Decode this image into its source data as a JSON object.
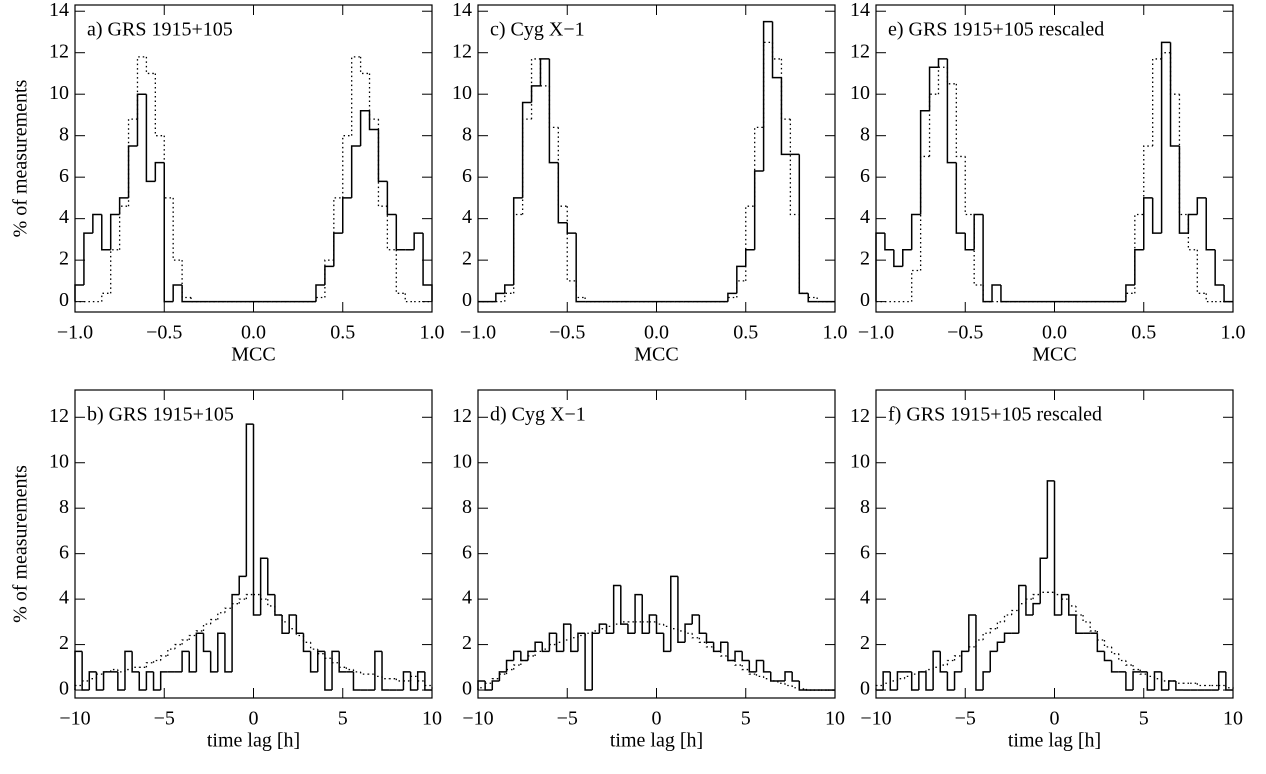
{
  "chart_data": [
    {
      "type": "histogram",
      "panel_label": "a) GRS 1915+105",
      "x_label": "MCC",
      "y_label": "% of measurements",
      "xlim": [
        -1,
        1
      ],
      "ylim": [
        -0.5,
        14.3
      ],
      "xticks": [
        {
          "value": -1,
          "label": "−1.0"
        },
        {
          "value": -0.5,
          "label": "−0.5"
        },
        {
          "value": 0,
          "label": "0.0"
        },
        {
          "value": 0.5,
          "label": "0.5"
        },
        {
          "value": 1,
          "label": "1.0"
        }
      ],
      "yticks": [
        0,
        2,
        4,
        6,
        8,
        10,
        12,
        14
      ],
      "bins": [
        -1,
        -0.95,
        -0.9,
        -0.85,
        -0.8,
        -0.75,
        -0.7,
        -0.65,
        -0.6,
        -0.55,
        -0.5,
        -0.45,
        -0.4,
        -0.35,
        -0.3,
        -0.25,
        -0.2,
        -0.15,
        -0.1,
        -0.05,
        0,
        0.05,
        0.1,
        0.15,
        0.2,
        0.25,
        0.3,
        0.35,
        0.4,
        0.45,
        0.5,
        0.55,
        0.6,
        0.65,
        0.7,
        0.75,
        0.8,
        0.85,
        0.9,
        0.95,
        1
      ],
      "series": [
        {
          "style": "solid",
          "color": "#000000",
          "values": [
            0.8,
            3.3,
            4.2,
            2.5,
            4.2,
            5.0,
            7.5,
            10.0,
            5.8,
            6.7,
            0,
            0.8,
            0,
            0,
            0,
            0,
            0,
            0,
            0,
            0,
            0,
            0,
            0,
            0,
            0,
            0,
            0,
            0.8,
            1.7,
            3.3,
            5.0,
            7.5,
            9.2,
            8.3,
            5.8,
            4.2,
            2.5,
            2.5,
            3.3,
            0.8
          ]
        },
        {
          "style": "dotted",
          "color": "#000000",
          "values": [
            0,
            0,
            0,
            0.4,
            2.5,
            4.6,
            8.8,
            11.8,
            11.0,
            8.0,
            5.0,
            2.0,
            0.2,
            0,
            0,
            0,
            0,
            0,
            0,
            0,
            0,
            0,
            0,
            0,
            0,
            0,
            0,
            0.2,
            2.0,
            5.0,
            8.0,
            11.8,
            11.0,
            8.8,
            4.6,
            2.5,
            0.4,
            0,
            0,
            0
          ]
        }
      ]
    },
    {
      "type": "histogram",
      "panel_label": "b) GRS 1915+105",
      "x_label": "time lag [h]",
      "y_label": "% of measurements",
      "xlim": [
        -10,
        10
      ],
      "ylim": [
        -0.35,
        13.2
      ],
      "xticks": [
        {
          "value": -10,
          "label": "−10"
        },
        {
          "value": -5,
          "label": "−5"
        },
        0,
        5,
        10
      ],
      "yticks": [
        0,
        2,
        4,
        6,
        8,
        10,
        12
      ],
      "bins": [
        -10,
        -9.6,
        -9.2,
        -8.8,
        -8.4,
        -8,
        -7.6,
        -7.2,
        -6.8,
        -6.4,
        -6,
        -5.6,
        -5.2,
        -4.8,
        -4.4,
        -4,
        -3.6,
        -3.2,
        -2.8,
        -2.4,
        -2,
        -1.6,
        -1.2,
        -0.8,
        -0.4,
        0,
        0.4,
        0.8,
        1.2,
        1.6,
        2,
        2.4,
        2.8,
        3.2,
        3.6,
        4,
        4.4,
        4.8,
        5.2,
        5.6,
        6,
        6.4,
        6.8,
        7.2,
        7.6,
        8,
        8.4,
        8.8,
        9.2,
        9.6,
        10
      ],
      "series": [
        {
          "style": "solid",
          "color": "#000000",
          "values": [
            1.7,
            0,
            0.8,
            0,
            0.8,
            0.8,
            0,
            1.7,
            0.8,
            0,
            0.8,
            0,
            0.8,
            0.8,
            0.8,
            1.7,
            0.8,
            2.5,
            1.7,
            0.8,
            2.5,
            0.8,
            4.2,
            5.0,
            11.7,
            3.3,
            5.8,
            4.2,
            3.3,
            2.5,
            3.3,
            2.5,
            1.7,
            0.8,
            1.7,
            0,
            1.7,
            0.8,
            0.8,
            0,
            0,
            0,
            1.7,
            0,
            0,
            0,
            0.8,
            0,
            0.8,
            0
          ]
        },
        {
          "style": "dotted",
          "color": "#000000",
          "values": [
            0.2,
            0.4,
            0.5,
            0.7,
            0.8,
            0.9,
            0.8,
            0.9,
            1.0,
            1.0,
            1.2,
            1.3,
            1.5,
            1.8,
            2.0,
            2.2,
            2.4,
            2.6,
            2.9,
            3.1,
            3.4,
            3.6,
            3.8,
            4.0,
            4.2,
            4.2,
            4.0,
            3.7,
            3.3,
            3.0,
            2.7,
            2.4,
            2.1,
            1.8,
            1.6,
            1.4,
            1.2,
            1.0,
            0.9,
            0.8,
            0.7,
            0.7,
            0.6,
            0.5,
            0.5,
            0.4,
            0.4,
            0.6,
            0.4,
            0.2
          ]
        }
      ]
    },
    {
      "type": "histogram",
      "panel_label": "c) Cyg X−1",
      "x_label": "MCC",
      "xlim": [
        -1,
        1
      ],
      "ylim": [
        -0.5,
        14.3
      ],
      "xticks": [
        {
          "value": -1,
          "label": "−1.0"
        },
        {
          "value": -0.5,
          "label": "−0.5"
        },
        {
          "value": 0,
          "label": "0.0"
        },
        {
          "value": 0.5,
          "label": "0.5"
        },
        {
          "value": 1,
          "label": "1.0"
        }
      ],
      "yticks": [
        0,
        2,
        4,
        6,
        8,
        10,
        12,
        14
      ],
      "bins": [
        -1,
        -0.95,
        -0.9,
        -0.85,
        -0.8,
        -0.75,
        -0.7,
        -0.65,
        -0.6,
        -0.55,
        -0.5,
        -0.45,
        -0.4,
        -0.35,
        -0.3,
        -0.25,
        -0.2,
        -0.15,
        -0.1,
        -0.05,
        0,
        0.05,
        0.1,
        0.15,
        0.2,
        0.25,
        0.3,
        0.35,
        0.4,
        0.45,
        0.5,
        0.55,
        0.6,
        0.65,
        0.7,
        0.75,
        0.8,
        0.85,
        0.9,
        0.95,
        1
      ],
      "series": [
        {
          "style": "solid",
          "color": "#000000",
          "values": [
            0,
            0,
            0.4,
            0.8,
            5.0,
            9.6,
            10.4,
            11.7,
            6.7,
            3.8,
            3.3,
            0,
            0,
            0,
            0,
            0,
            0,
            0,
            0,
            0,
            0,
            0,
            0,
            0,
            0,
            0,
            0,
            0,
            0.4,
            1.7,
            2.5,
            6.3,
            13.5,
            10.8,
            7.1,
            7.1,
            0.4,
            0,
            0,
            0
          ]
        },
        {
          "style": "dotted",
          "color": "#000000",
          "values": [
            0,
            0,
            0,
            0.4,
            4.2,
            8.8,
            11.7,
            10.4,
            8.4,
            4.6,
            1.0,
            0.2,
            0,
            0,
            0,
            0,
            0,
            0,
            0,
            0,
            0,
            0,
            0,
            0,
            0,
            0,
            0,
            0,
            0.2,
            1.0,
            4.6,
            8.4,
            12.5,
            11.7,
            8.8,
            4.2,
            0.4,
            0.2,
            0,
            0
          ]
        }
      ]
    },
    {
      "type": "histogram",
      "panel_label": "d) Cyg X−1",
      "x_label": "time lag [h]",
      "xlim": [
        -10,
        10
      ],
      "ylim": [
        -0.35,
        13.2
      ],
      "xticks": [
        {
          "value": -10,
          "label": "−10"
        },
        {
          "value": -5,
          "label": "−5"
        },
        0,
        5,
        10
      ],
      "yticks": [
        0,
        2,
        4,
        6,
        8,
        10,
        12
      ],
      "bins": [
        -10,
        -9.6,
        -9.2,
        -8.8,
        -8.4,
        -8,
        -7.6,
        -7.2,
        -6.8,
        -6.4,
        -6,
        -5.6,
        -5.2,
        -4.8,
        -4.4,
        -4,
        -3.6,
        -3.2,
        -2.8,
        -2.4,
        -2,
        -1.6,
        -1.2,
        -0.8,
        -0.4,
        0,
        0.4,
        0.8,
        1.2,
        1.6,
        2,
        2.4,
        2.8,
        3.2,
        3.6,
        4,
        4.4,
        4.8,
        5.2,
        5.6,
        6,
        6.4,
        6.8,
        7.2,
        7.6,
        8,
        8.4,
        8.8,
        9.2,
        9.6,
        10
      ],
      "series": [
        {
          "style": "solid",
          "color": "#000000",
          "values": [
            0.4,
            0,
            0.4,
            0.8,
            1.3,
            1.7,
            1.3,
            1.7,
            2.1,
            1.7,
            2.5,
            1.7,
            2.9,
            1.7,
            2.5,
            0,
            2.5,
            2.9,
            2.5,
            4.6,
            2.9,
            2.5,
            4.2,
            2.5,
            3.3,
            2.5,
            1.7,
            5.0,
            2.1,
            2.9,
            3.3,
            2.5,
            2.1,
            1.7,
            2.1,
            1.3,
            1.7,
            1.3,
            0.8,
            1.3,
            0.8,
            0.4,
            0.4,
            0.8,
            0.4,
            0,
            0,
            0,
            0,
            0
          ]
        },
        {
          "style": "dotted",
          "color": "#000000",
          "values": [
            0.1,
            0.3,
            0.5,
            0.7,
            0.9,
            1.1,
            1.3,
            1.5,
            1.7,
            1.8,
            2.0,
            2.1,
            2.2,
            2.3,
            2.4,
            2.5,
            2.6,
            2.7,
            2.8,
            2.9,
            3.0,
            3.0,
            3.0,
            3.0,
            3.0,
            2.9,
            2.8,
            2.7,
            2.6,
            2.5,
            2.3,
            2.1,
            1.9,
            1.7,
            1.5,
            1.3,
            1.1,
            0.9,
            0.7,
            0.6,
            0.5,
            0.4,
            0.3,
            0.2,
            0.1,
            0.05,
            0,
            0,
            0,
            0
          ]
        }
      ]
    },
    {
      "type": "histogram",
      "panel_label": "e) GRS 1915+105 rescaled",
      "x_label": "MCC",
      "xlim": [
        -1,
        1
      ],
      "ylim": [
        -0.5,
        14.3
      ],
      "xticks": [
        {
          "value": -1,
          "label": "−1.0"
        },
        {
          "value": -0.5,
          "label": "−0.5"
        },
        {
          "value": 0,
          "label": "0.0"
        },
        {
          "value": 0.5,
          "label": "0.5"
        },
        {
          "value": 1,
          "label": "1.0"
        }
      ],
      "yticks": [
        0,
        2,
        4,
        6,
        8,
        10,
        12,
        14
      ],
      "bins": [
        -1,
        -0.95,
        -0.9,
        -0.85,
        -0.8,
        -0.75,
        -0.7,
        -0.65,
        -0.6,
        -0.55,
        -0.5,
        -0.45,
        -0.4,
        -0.35,
        -0.3,
        -0.25,
        -0.2,
        -0.15,
        -0.1,
        -0.05,
        0,
        0.05,
        0.1,
        0.15,
        0.2,
        0.25,
        0.3,
        0.35,
        0.4,
        0.45,
        0.5,
        0.55,
        0.6,
        0.65,
        0.7,
        0.75,
        0.8,
        0.85,
        0.9,
        0.95,
        1
      ],
      "series": [
        {
          "style": "solid",
          "color": "#000000",
          "values": [
            3.3,
            2.5,
            1.7,
            2.5,
            4.2,
            9.2,
            11.3,
            11.7,
            6.7,
            3.3,
            2.5,
            4.2,
            0,
            0.8,
            0,
            0,
            0,
            0,
            0,
            0,
            0,
            0,
            0,
            0,
            0,
            0,
            0,
            0,
            0.8,
            2.5,
            5.0,
            3.3,
            12.5,
            7.5,
            3.3,
            4.2,
            5.0,
            2.5,
            0.8,
            0
          ]
        },
        {
          "style": "dotted",
          "color": "#000000",
          "values": [
            0,
            0,
            0,
            0,
            1.5,
            7.0,
            10.0,
            11.3,
            10.5,
            7.0,
            4.2,
            0.8,
            0,
            0,
            0,
            0,
            0,
            0,
            0,
            0,
            0,
            0,
            0,
            0,
            0,
            0,
            0,
            0,
            0.4,
            4.2,
            7.5,
            11.7,
            12.0,
            10.0,
            4.2,
            2.5,
            0.4,
            0,
            0,
            0
          ]
        }
      ]
    },
    {
      "type": "histogram",
      "panel_label": "f) GRS 1915+105 rescaled",
      "x_label": "time lag [h]",
      "xlim": [
        -10,
        10
      ],
      "ylim": [
        -0.35,
        13.2
      ],
      "xticks": [
        {
          "value": -10,
          "label": "−10"
        },
        {
          "value": -5,
          "label": "−5"
        },
        0,
        5,
        10
      ],
      "yticks": [
        0,
        2,
        4,
        6,
        8,
        10,
        12
      ],
      "bins": [
        -10,
        -9.6,
        -9.2,
        -8.8,
        -8.4,
        -8,
        -7.6,
        -7.2,
        -6.8,
        -6.4,
        -6,
        -5.6,
        -5.2,
        -4.8,
        -4.4,
        -4,
        -3.6,
        -3.2,
        -2.8,
        -2.4,
        -2,
        -1.6,
        -1.2,
        -0.8,
        -0.4,
        0,
        0.4,
        0.8,
        1.2,
        1.6,
        2,
        2.4,
        2.8,
        3.2,
        3.6,
        4,
        4.4,
        4.8,
        5.2,
        5.6,
        6,
        6.4,
        6.8,
        7.2,
        7.6,
        8,
        8.4,
        8.8,
        9.2,
        9.6,
        10
      ],
      "series": [
        {
          "style": "solid",
          "color": "#000000",
          "values": [
            0,
            0.8,
            0,
            0.8,
            0.8,
            0,
            0.8,
            0,
            1.7,
            0.8,
            0,
            0.8,
            1.7,
            3.3,
            0,
            0.8,
            1.7,
            2.1,
            2.5,
            2.5,
            4.6,
            3.3,
            3.8,
            5.8,
            9.2,
            3.3,
            4.2,
            3.3,
            2.5,
            2.5,
            2.5,
            1.7,
            1.3,
            0.8,
            0.8,
            0,
            0.8,
            0.8,
            0,
            0.8,
            0,
            0.4,
            0,
            0,
            0,
            0,
            0,
            0,
            0.8,
            0
          ]
        },
        {
          "style": "dotted",
          "color": "#000000",
          "values": [
            0.2,
            0.3,
            0.4,
            0.5,
            0.6,
            0.7,
            0.8,
            0.9,
            1.0,
            1.1,
            1.3,
            1.5,
            1.7,
            1.9,
            2.2,
            2.5,
            2.7,
            3.0,
            3.3,
            3.5,
            3.8,
            4.0,
            4.2,
            4.3,
            4.3,
            4.2,
            4.0,
            3.7,
            3.3,
            3.0,
            2.6,
            2.2,
            1.9,
            1.6,
            1.3,
            1.1,
            0.9,
            0.7,
            0.6,
            0.5,
            0.4,
            0.4,
            0.3,
            0.3,
            0.3,
            0.2,
            0.2,
            0.2,
            0.2,
            0.1
          ]
        }
      ]
    }
  ]
}
